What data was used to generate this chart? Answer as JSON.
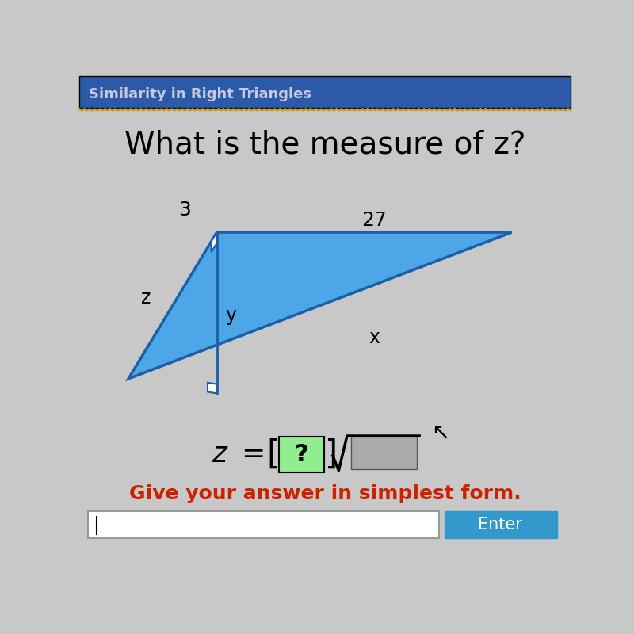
{
  "title": "Similarity in Right Triangles",
  "title_bg_color": "#2B5BA8",
  "title_text_color": "#C8C8DD",
  "question_text": "What is the measure of z?",
  "bg_color": "#C8C8C8",
  "triangle_fill_color": "#4DA6E8",
  "triangle_edge_color": "#1A5FA8",
  "label_3": "3",
  "label_27": "27",
  "label_z": "z",
  "label_y": "y",
  "label_x": "x",
  "formula_bracket_color": "#90EE90",
  "bottom_text": "Give your answer in simplest form.",
  "bottom_text_color": "#CC2200",
  "enter_button_color": "#3399CC",
  "enter_button_text": "Enter",
  "A": [
    0.1,
    0.38
  ],
  "B": [
    0.28,
    0.68
  ],
  "C": [
    0.88,
    0.68
  ],
  "D": [
    0.28,
    0.35
  ]
}
